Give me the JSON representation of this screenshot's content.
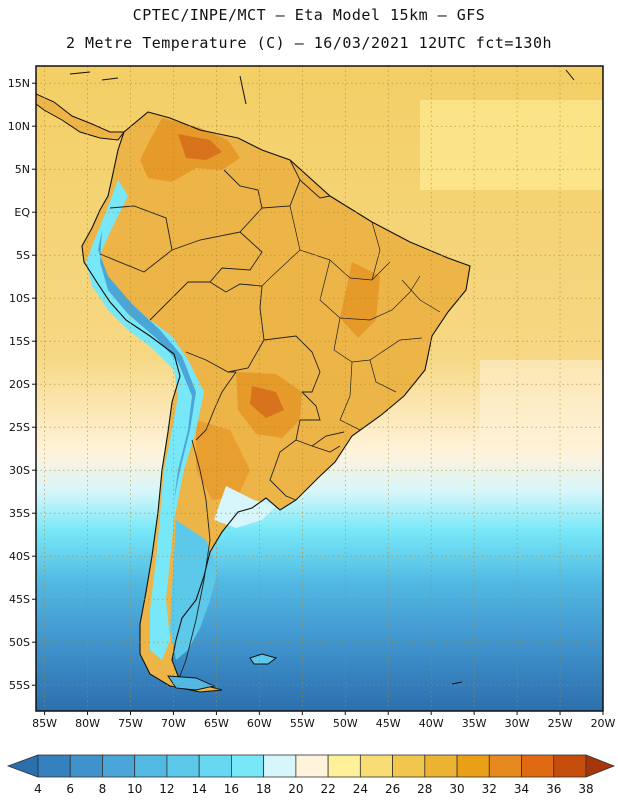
{
  "header": {
    "line1": "CPTEC/INPE/MCT –  Eta Model 15km – GFS",
    "line2": "2 Metre Temperature (C) – 16/03/2021 12UTC fct=130h"
  },
  "map": {
    "region": "South America",
    "lon_range": [
      -86,
      -20
    ],
    "lat_range": [
      -58,
      17
    ],
    "lat_labels": [
      "15N",
      "10N",
      "5N",
      "EQ",
      "5S",
      "10S",
      "15S",
      "20S",
      "25S",
      "30S",
      "35S",
      "40S",
      "45S",
      "50S",
      "55S"
    ],
    "lon_labels": [
      "85W",
      "80W",
      "75W",
      "70W",
      "65W",
      "60W",
      "55W",
      "50W",
      "45W",
      "40W",
      "35W",
      "30W",
      "25W",
      "20W"
    ],
    "colors": {
      "ocean_south": "#2f6fb3",
      "ocean_mid": "#4fb4dc",
      "ocean_cold": "#7fd9ee",
      "ocean_warm": "#f6d277",
      "ocean_tropical": "#f3cf65",
      "land_warm": "#edb548",
      "land_hot": "#e69a2a",
      "land_hottest": "#d6731c",
      "andes": "#7fd9ee",
      "coast": "#111111",
      "border": "#333333",
      "grid": "#b08a2a"
    }
  },
  "colorbar": {
    "labels": [
      "4",
      "6",
      "8",
      "10",
      "12",
      "14",
      "16",
      "18",
      "20",
      "22",
      "24",
      "26",
      "28",
      "30",
      "32",
      "34",
      "36",
      "38"
    ],
    "colors": [
      "#2c6fad",
      "#3580bf",
      "#3f92cc",
      "#4aa6d8",
      "#52b9e3",
      "#5cc8ea",
      "#68d8f2",
      "#78e8f8",
      "#d6f6fb",
      "#fff3dc",
      "#fff09a",
      "#f8dd75",
      "#f1c64d",
      "#ecb232",
      "#e9a016",
      "#e6891f",
      "#df6a11",
      "#c54c0b",
      "#a6360a"
    ]
  }
}
